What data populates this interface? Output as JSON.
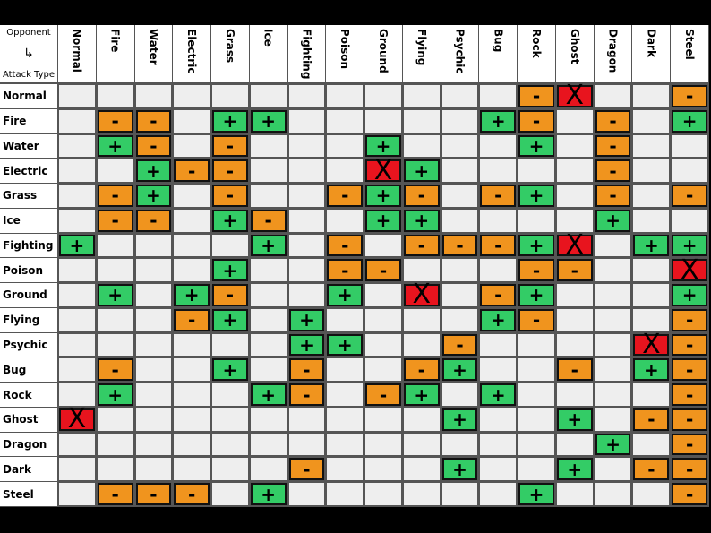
{
  "header": {
    "opponent": "Opponent",
    "attack_type": "Attack Type"
  },
  "columns": [
    "Normal",
    "Fire",
    "Water",
    "Electric",
    "Grass",
    "Ice",
    "Fighting",
    "Poison",
    "Ground",
    "Flying",
    "Psychic",
    "Bug",
    "Rock",
    "Ghost",
    "Dragon",
    "Dark",
    "Steel"
  ],
  "rows": [
    {
      "label": "Normal",
      "cells": [
        null,
        null,
        null,
        null,
        null,
        null,
        null,
        null,
        null,
        null,
        null,
        null,
        "-",
        "X",
        null,
        null,
        "-"
      ]
    },
    {
      "label": "Fire",
      "cells": [
        null,
        "-",
        "-",
        null,
        "+",
        "+",
        null,
        null,
        null,
        null,
        null,
        "+",
        "-",
        null,
        "-",
        null,
        "+"
      ]
    },
    {
      "label": "Water",
      "cells": [
        null,
        "+",
        "-",
        null,
        "-",
        null,
        null,
        null,
        "+",
        null,
        null,
        null,
        "+",
        null,
        "-",
        null,
        null
      ]
    },
    {
      "label": "Electric",
      "cells": [
        null,
        null,
        "+",
        "-",
        "-",
        null,
        null,
        null,
        "X",
        "+",
        null,
        null,
        null,
        null,
        "-",
        null,
        null
      ]
    },
    {
      "label": "Grass",
      "cells": [
        null,
        "-",
        "+",
        null,
        "-",
        null,
        null,
        "-",
        "+",
        "-",
        null,
        "-",
        "+",
        null,
        "-",
        null,
        "-"
      ]
    },
    {
      "label": "Ice",
      "cells": [
        null,
        "-",
        "-",
        null,
        "+",
        "-",
        null,
        null,
        "+",
        "+",
        null,
        null,
        null,
        null,
        "+",
        null,
        null
      ]
    },
    {
      "label": "Fighting",
      "cells": [
        "+",
        null,
        null,
        null,
        null,
        "+",
        null,
        "-",
        null,
        "-",
        "-",
        "-",
        "+",
        "X",
        null,
        "+",
        "+"
      ]
    },
    {
      "label": "Poison",
      "cells": [
        null,
        null,
        null,
        null,
        "+",
        null,
        null,
        "-",
        "-",
        null,
        null,
        null,
        "-",
        "-",
        null,
        null,
        "X"
      ]
    },
    {
      "label": "Ground",
      "cells": [
        null,
        "+",
        null,
        "+",
        "-",
        null,
        null,
        "+",
        null,
        "X",
        null,
        "-",
        "+",
        null,
        null,
        null,
        "+"
      ]
    },
    {
      "label": "Flying",
      "cells": [
        null,
        null,
        null,
        "-",
        "+",
        null,
        "+",
        null,
        null,
        null,
        null,
        "+",
        "-",
        null,
        null,
        null,
        "-"
      ]
    },
    {
      "label": "Psychic",
      "cells": [
        null,
        null,
        null,
        null,
        null,
        null,
        "+",
        "+",
        null,
        null,
        "-",
        null,
        null,
        null,
        null,
        "X",
        "-"
      ]
    },
    {
      "label": "Bug",
      "cells": [
        null,
        "-",
        null,
        null,
        "+",
        null,
        "-",
        null,
        null,
        "-",
        "+",
        null,
        null,
        "-",
        null,
        "+",
        "-"
      ]
    },
    {
      "label": "Rock",
      "cells": [
        null,
        "+",
        null,
        null,
        null,
        "+",
        "-",
        null,
        "-",
        "+",
        null,
        "+",
        null,
        null,
        null,
        null,
        "-"
      ]
    },
    {
      "label": "Ghost",
      "cells": [
        "X",
        null,
        null,
        null,
        null,
        null,
        null,
        null,
        null,
        null,
        "+",
        null,
        null,
        "+",
        null,
        "-",
        "-"
      ]
    },
    {
      "label": "Dragon",
      "cells": [
        null,
        null,
        null,
        null,
        null,
        null,
        null,
        null,
        null,
        null,
        null,
        null,
        null,
        null,
        "+",
        null,
        "-"
      ]
    },
    {
      "label": "Dark",
      "cells": [
        null,
        null,
        null,
        null,
        null,
        null,
        "-",
        null,
        null,
        null,
        "+",
        null,
        null,
        "+",
        null,
        "-",
        "-"
      ]
    },
    {
      "label": "Steel",
      "cells": [
        null,
        "-",
        "-",
        "-",
        null,
        "+",
        null,
        null,
        null,
        null,
        null,
        null,
        "+",
        null,
        null,
        null,
        "-"
      ]
    }
  ]
}
